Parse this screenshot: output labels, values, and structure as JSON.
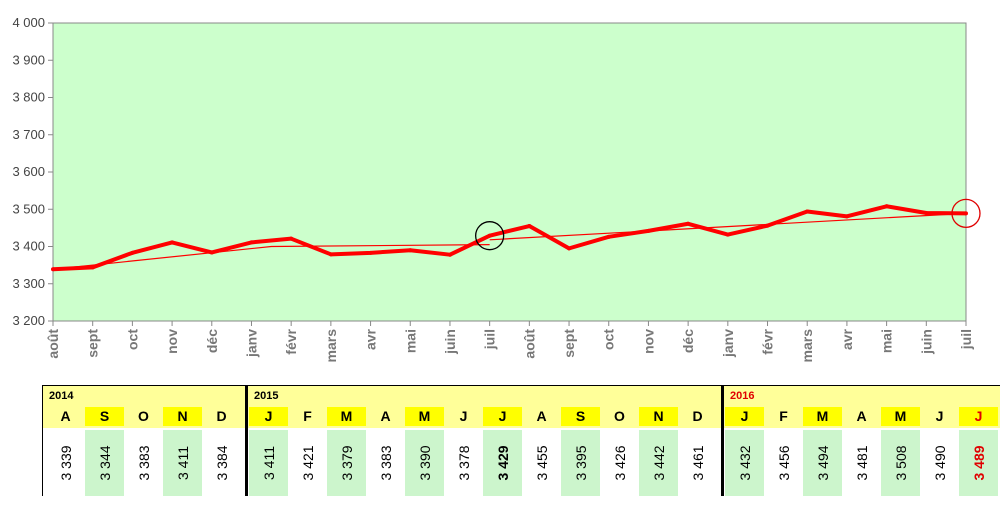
{
  "chart_data": {
    "type": "line",
    "x": [
      "août",
      "sept",
      "oct",
      "nov",
      "déc",
      "janv",
      "févr",
      "mars",
      "avr",
      "mai",
      "juin",
      "juil",
      "août",
      "sept",
      "oct",
      "nov",
      "déc",
      "janv",
      "févr",
      "mars",
      "avr",
      "mai",
      "juin",
      "juil"
    ],
    "series": [
      {
        "values": [
          3339,
          3344,
          3383,
          3411,
          3384,
          3411,
          3421,
          3379,
          3383,
          3390,
          3378,
          3429,
          3455,
          3395,
          3426,
          3442,
          3461,
          3432,
          3456,
          3494,
          3481,
          3508,
          3490,
          3489
        ]
      }
    ],
    "trend": [
      {
        "from_index": 0,
        "to_index": 11,
        "values": [
          3339,
          3400,
          3405
        ]
      },
      {
        "from_index": 11,
        "to_index": 23,
        "values": [
          3418,
          3489
        ]
      }
    ],
    "markers": [
      {
        "index": 11,
        "color": "#000000"
      },
      {
        "index": 23,
        "color": "#e00000"
      }
    ],
    "yticks": [
      "3 200",
      "3 300",
      "3 400",
      "3 500",
      "3 600",
      "3 700",
      "3 800",
      "3 900",
      "4 000"
    ],
    "ylim": [
      3200,
      4000
    ],
    "grid": false,
    "line_color": "#ff0000",
    "plot_bg": "#ccffcc"
  },
  "table": {
    "groups": [
      {
        "year": "2014",
        "current": false,
        "months": [
          {
            "letter": "A",
            "value": "3 339",
            "hl": false
          },
          {
            "letter": "S",
            "value": "3 344",
            "hl": true
          },
          {
            "letter": "O",
            "value": "3 383",
            "hl": false
          },
          {
            "letter": "N",
            "value": "3 411",
            "hl": true
          },
          {
            "letter": "D",
            "value": "3 384",
            "hl": false
          }
        ]
      },
      {
        "year": "2015",
        "current": false,
        "months": [
          {
            "letter": "J",
            "value": "3 411",
            "hl": true
          },
          {
            "letter": "F",
            "value": "3 421",
            "hl": false
          },
          {
            "letter": "M",
            "value": "3 379",
            "hl": true
          },
          {
            "letter": "A",
            "value": "3 383",
            "hl": false
          },
          {
            "letter": "M",
            "value": "3 390",
            "hl": true
          },
          {
            "letter": "J",
            "value": "3 378",
            "hl": false
          },
          {
            "letter": "J",
            "value": "3 429",
            "hl": true,
            "bold": true
          },
          {
            "letter": "A",
            "value": "3 455",
            "hl": false
          },
          {
            "letter": "S",
            "value": "3 395",
            "hl": true
          },
          {
            "letter": "O",
            "value": "3 426",
            "hl": false
          },
          {
            "letter": "N",
            "value": "3 442",
            "hl": true
          },
          {
            "letter": "D",
            "value": "3 461",
            "hl": false
          }
        ]
      },
      {
        "year": "2016",
        "current": true,
        "months": [
          {
            "letter": "J",
            "value": "3 432",
            "hl": true
          },
          {
            "letter": "F",
            "value": "3 456",
            "hl": false
          },
          {
            "letter": "M",
            "value": "3 494",
            "hl": true
          },
          {
            "letter": "A",
            "value": "3 481",
            "hl": false
          },
          {
            "letter": "M",
            "value": "3 508",
            "hl": true
          },
          {
            "letter": "J",
            "value": "3 490",
            "hl": false
          },
          {
            "letter": "J",
            "value": "3 489",
            "hl": true,
            "red": true
          }
        ]
      }
    ]
  }
}
